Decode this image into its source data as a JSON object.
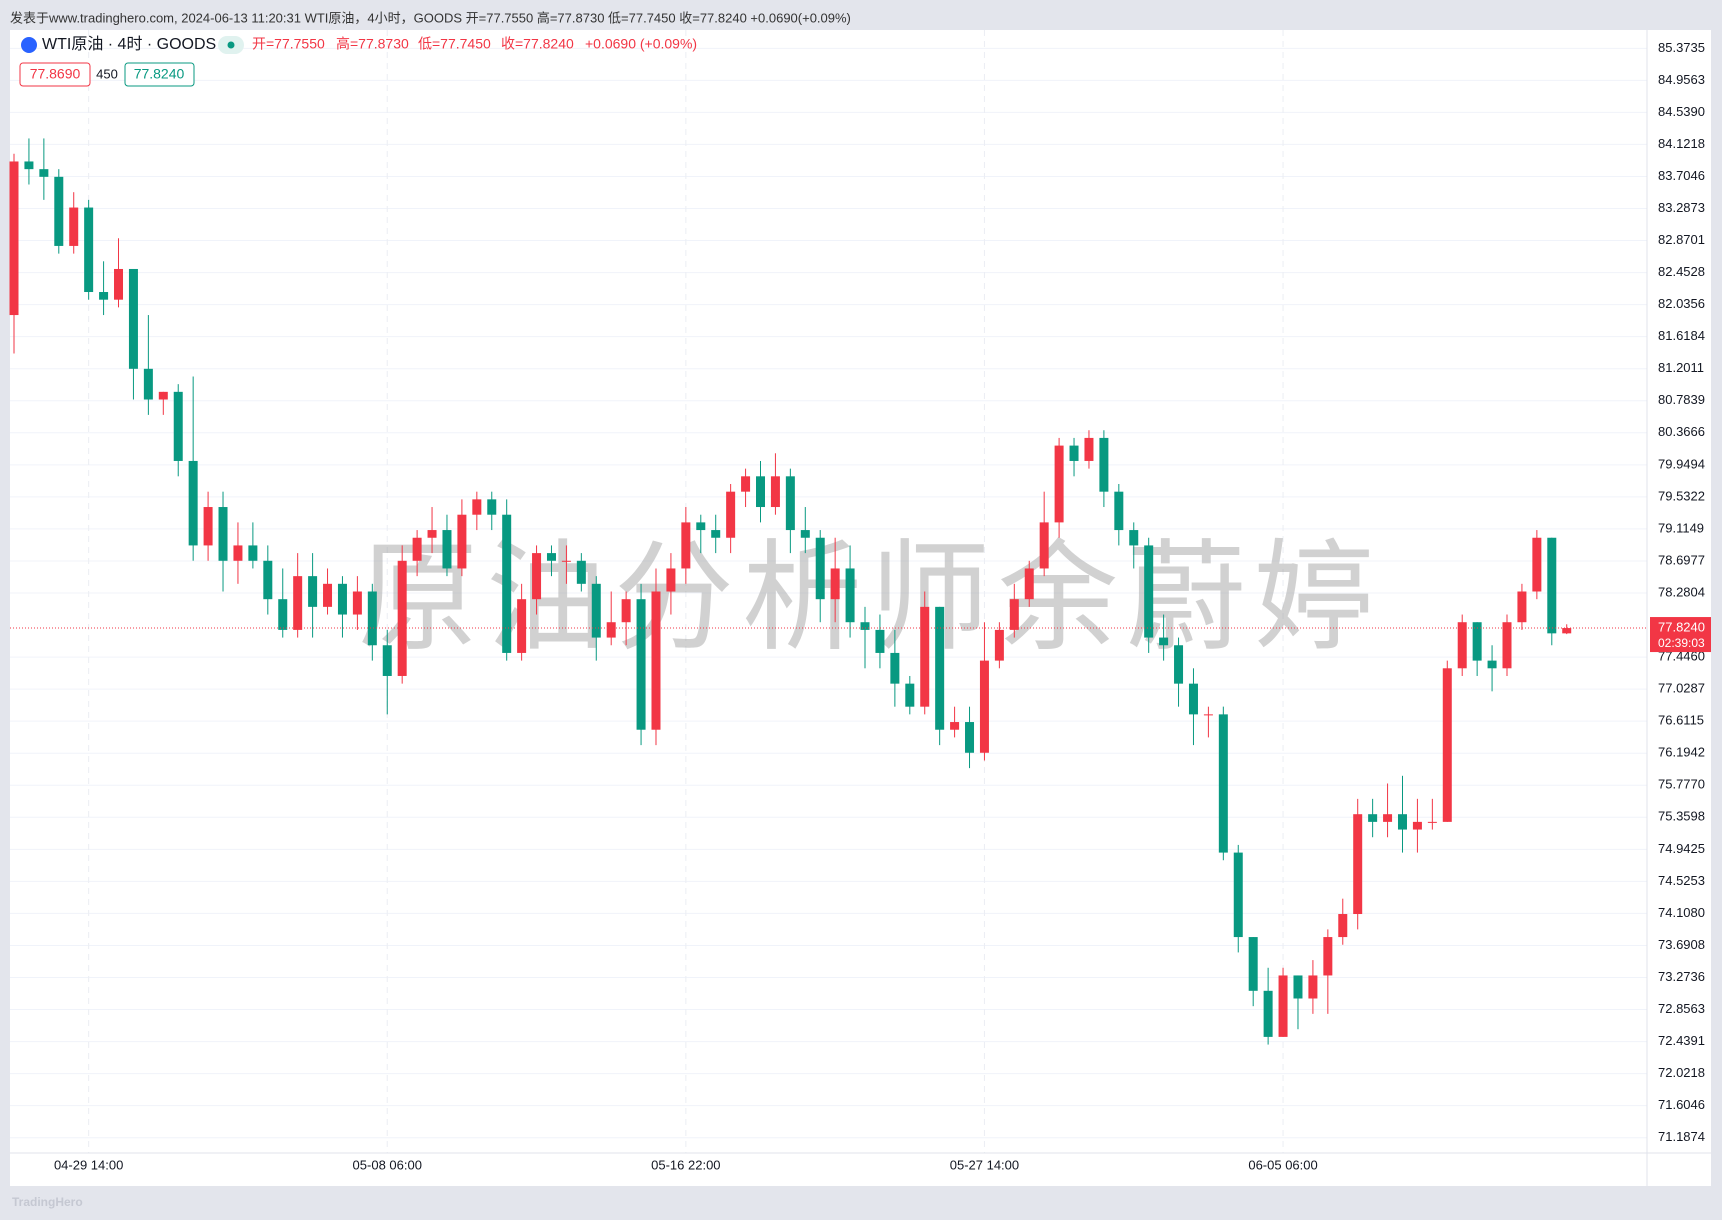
{
  "header": "发表于www.tradinghero.com, 2024-06-13 11:20:31 WTI原油，4小时，GOODS 开=77.7550 高=77.8730 低=77.7450 收=77.8240 +0.0690(+0.09%)",
  "legend": {
    "symbol": "WTI原油 · 4时 · GOODS",
    "open": "开=77.7550",
    "high": "高=77.8730",
    "low": "低=77.7450",
    "close": "收=77.8240",
    "change": "+0.0690 (+0.09%)",
    "bid": "77.8690",
    "spread": "450",
    "ask": "77.8240"
  },
  "price_tag": {
    "price": "77.8240",
    "countdown": "02:39:03"
  },
  "watermark": "原油分析师余蔚婷",
  "footer": "TradingHero",
  "chart_data": {
    "type": "candlestick",
    "categories": [
      null,
      null,
      null,
      null,
      null,
      "04-29 14:00",
      null,
      null,
      null,
      null,
      null,
      null,
      null,
      null,
      null,
      null,
      null,
      null,
      null,
      null,
      null,
      null,
      null,
      null,
      null,
      "05-08 06:00",
      null,
      null,
      null,
      null,
      null,
      null,
      null,
      null,
      null,
      null,
      null,
      null,
      null,
      null,
      null,
      null,
      null,
      null,
      null,
      "05-16 22:00",
      null,
      null,
      null,
      null,
      null,
      null,
      null,
      null,
      null,
      null,
      null,
      null,
      null,
      null,
      null,
      null,
      null,
      null,
      null,
      "05-27 14:00",
      null,
      null,
      null,
      null,
      null,
      null,
      null,
      null,
      null,
      null,
      null,
      null,
      null,
      null,
      null,
      null,
      null,
      null,
      null,
      "06-05 06:00",
      null,
      null,
      null,
      null,
      null,
      null,
      null,
      null,
      null,
      null,
      null,
      null,
      null,
      null,
      null,
      null,
      null,
      null,
      null
    ],
    "open": [
      81.9,
      83.9,
      83.8,
      83.7,
      82.8,
      83.3,
      82.2,
      82.1,
      82.5,
      81.2,
      80.8,
      80.9,
      80.0,
      78.9,
      79.4,
      78.7,
      78.9,
      78.7,
      78.2,
      77.8,
      78.5,
      78.1,
      78.4,
      78.0,
      78.3,
      77.6,
      77.2,
      78.7,
      79.0,
      79.1,
      78.6,
      79.3,
      79.5,
      79.3,
      77.5,
      78.2,
      78.8,
      78.7,
      78.7,
      78.4,
      77.7,
      77.9,
      78.2,
      76.5,
      78.3,
      78.6,
      79.2,
      79.1,
      79.0,
      79.6,
      79.8,
      79.4,
      79.8,
      79.1,
      79.0,
      78.2,
      78.6,
      77.9,
      77.8,
      77.5,
      77.1,
      76.8,
      78.1,
      76.5,
      76.6,
      76.2,
      77.4,
      77.8,
      78.2,
      78.6,
      79.2,
      80.2,
      80.0,
      80.3,
      79.6,
      79.1,
      78.9,
      77.7,
      77.6,
      77.1,
      76.7,
      76.7,
      74.9,
      73.8,
      73.1,
      72.5,
      73.3,
      73.0,
      73.3,
      73.8,
      74.1,
      75.4,
      75.3,
      75.4,
      75.2,
      75.3,
      75.3,
      77.3,
      77.9,
      77.4,
      77.3,
      77.9,
      78.3,
      79.0,
      77.755
    ],
    "high": [
      84.0,
      84.2,
      84.2,
      83.8,
      83.5,
      83.4,
      82.6,
      82.9,
      82.5,
      81.9,
      80.9,
      81.0,
      81.1,
      79.6,
      79.6,
      79.2,
      79.2,
      78.9,
      78.6,
      78.8,
      78.8,
      78.6,
      78.5,
      78.5,
      78.4,
      77.8,
      78.9,
      79.1,
      79.4,
      79.3,
      79.5,
      79.6,
      79.6,
      79.5,
      78.4,
      78.9,
      78.9,
      78.9,
      78.8,
      78.5,
      78.3,
      78.3,
      78.4,
      78.6,
      78.8,
      79.4,
      79.3,
      79.3,
      79.7,
      79.9,
      80.0,
      80.1,
      79.9,
      79.4,
      79.1,
      79.0,
      78.9,
      78.1,
      78.0,
      77.8,
      77.2,
      78.3,
      78.1,
      76.8,
      76.8,
      77.9,
      77.9,
      78.4,
      78.7,
      79.6,
      80.3,
      80.3,
      80.4,
      80.4,
      79.7,
      79.2,
      79.0,
      78.0,
      77.7,
      77.3,
      76.8,
      76.8,
      75.0,
      73.8,
      73.4,
      73.4,
      73.3,
      73.5,
      73.9,
      74.3,
      75.6,
      75.6,
      75.8,
      75.9,
      75.6,
      75.6,
      77.4,
      78.0,
      77.9,
      77.6,
      78.0,
      78.4,
      79.1,
      79.0,
      77.873
    ],
    "low": [
      81.4,
      83.6,
      83.4,
      82.7,
      82.7,
      82.1,
      81.9,
      82.0,
      80.8,
      80.6,
      80.6,
      79.8,
      78.7,
      78.7,
      78.3,
      78.4,
      78.6,
      78.0,
      77.7,
      77.7,
      77.7,
      78.0,
      77.7,
      77.8,
      77.4,
      76.7,
      77.1,
      78.5,
      78.8,
      78.5,
      78.5,
      79.1,
      79.1,
      77.4,
      77.4,
      78.0,
      78.5,
      78.4,
      78.3,
      77.4,
      77.6,
      77.6,
      76.3,
      76.3,
      78.0,
      78.4,
      78.8,
      78.8,
      78.8,
      79.4,
      79.2,
      79.3,
      78.8,
      78.8,
      77.9,
      77.9,
      77.7,
      77.3,
      77.3,
      76.8,
      76.7,
      76.7,
      76.3,
      76.4,
      76.0,
      76.1,
      77.3,
      77.7,
      78.1,
      78.5,
      79.0,
      79.8,
      79.9,
      79.4,
      78.9,
      78.6,
      77.5,
      77.4,
      76.8,
      76.3,
      76.4,
      74.8,
      73.6,
      72.9,
      72.4,
      72.5,
      72.6,
      72.8,
      72.8,
      73.7,
      73.9,
      75.1,
      75.1,
      74.9,
      74.9,
      75.2,
      75.3,
      77.2,
      77.2,
      77.0,
      77.2,
      77.8,
      78.2,
      77.6,
      77.745
    ],
    "close": [
      83.9,
      83.8,
      83.7,
      82.8,
      83.3,
      82.2,
      82.1,
      82.5,
      81.2,
      80.8,
      80.9,
      80.0,
      78.9,
      79.4,
      78.7,
      78.9,
      78.7,
      78.2,
      77.8,
      78.5,
      78.1,
      78.4,
      78.0,
      78.3,
      77.6,
      77.2,
      78.7,
      79.0,
      79.1,
      78.6,
      79.3,
      79.5,
      79.3,
      77.5,
      78.2,
      78.8,
      78.7,
      78.7,
      78.4,
      77.7,
      77.9,
      78.2,
      76.5,
      78.3,
      78.6,
      79.2,
      79.1,
      79.0,
      79.6,
      79.8,
      79.4,
      79.8,
      79.1,
      79.0,
      78.2,
      78.6,
      77.9,
      77.8,
      77.5,
      77.1,
      76.8,
      78.1,
      76.5,
      76.6,
      76.2,
      77.4,
      77.8,
      78.2,
      78.6,
      79.2,
      80.2,
      80.0,
      80.3,
      79.6,
      79.1,
      78.9,
      77.7,
      77.6,
      77.1,
      76.7,
      76.7,
      74.9,
      73.8,
      73.1,
      72.5,
      73.3,
      73.0,
      73.3,
      73.8,
      74.1,
      75.4,
      75.3,
      75.4,
      75.2,
      75.3,
      75.3,
      77.3,
      77.9,
      77.4,
      77.3,
      77.9,
      78.3,
      79.0,
      77.755,
      77.824
    ],
    "up_color": "#f23645",
    "down_color": "#089981",
    "ylim": [
      70.988,
      85.612
    ],
    "yticks": [
      {
        "value": 85.3735,
        "label": "85.3735"
      },
      84.9563,
      {
        "value": 84.539,
        "label": "84.5390"
      },
      84.1218,
      83.7046,
      83.2873,
      82.8701,
      82.4528,
      82.0356,
      81.6184,
      81.2011,
      80.7839,
      80.3666,
      79.9494,
      79.5322,
      79.1149,
      78.6977,
      78.2804,
      {
        "value": 77.446,
        "label": "77.4460"
      },
      77.0287,
      76.6115,
      76.1942,
      {
        "value": 75.777,
        "label": "75.7770"
      },
      75.3598,
      74.9425,
      74.5253,
      {
        "value": 74.108,
        "label": "74.1080"
      },
      73.6908,
      73.2736,
      72.8563,
      72.4391,
      72.0218,
      71.6046,
      71.1874
    ],
    "last_price": 77.824,
    "grid": true
  }
}
